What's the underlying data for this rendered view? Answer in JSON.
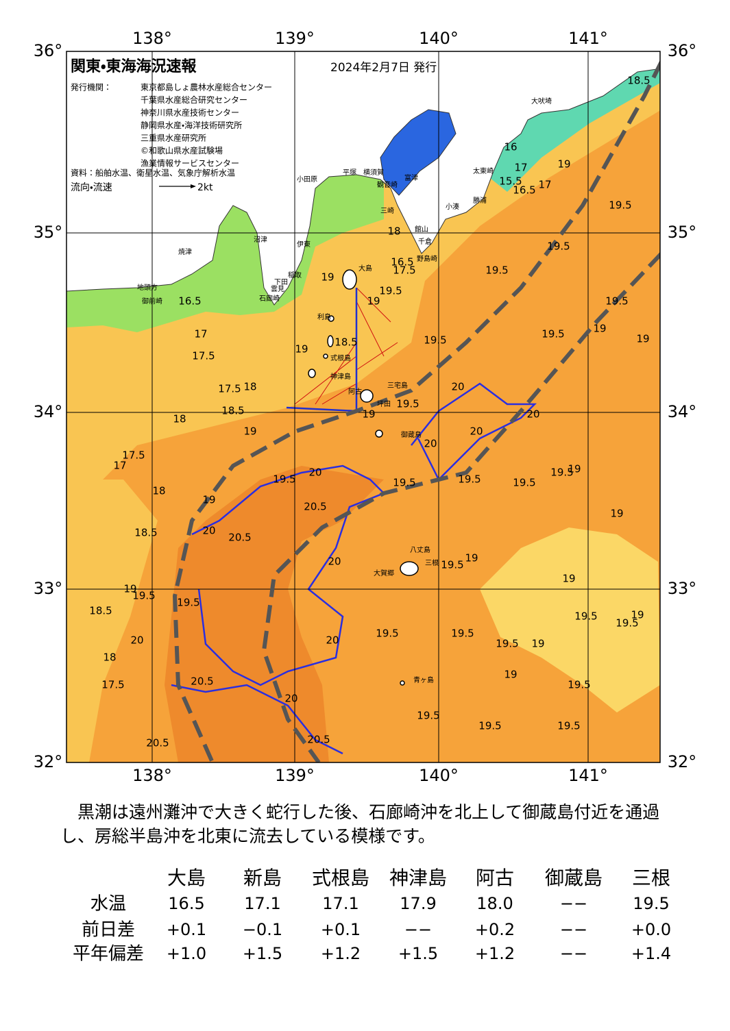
{
  "header": {
    "title": "関東・東海海況速報",
    "date": "2024年2月7日 発行",
    "issuer_label": "発行機関：",
    "issuers": [
      "東京都島しょ農林水産総合センター",
      "千葉県水産総合研究センター",
      "神奈川県水産技術センター",
      "静岡県水産・海洋技術研究所",
      "三重県水産研究所",
      "©和歌山県水産試験場",
      "漁業情報サービスセンター"
    ],
    "source": "資料：船舶水温、衛星水温、気象庁解析水温",
    "legend_label": "流向・流速",
    "legend_scale": "2kt"
  },
  "map": {
    "lon_labels": [
      "138°",
      "139°",
      "140°",
      "141°"
    ],
    "lat_labels": [
      "36°",
      "35°",
      "34°",
      "33°",
      "32°"
    ],
    "places": [
      "大吠埼",
      "太東崎",
      "勝浦",
      "小湊",
      "館山",
      "千倉",
      "野島崎",
      "富津",
      "観音崎",
      "横須賀",
      "平塚",
      "小田原",
      "三崎",
      "大島",
      "利島",
      "式根島",
      "神津島",
      "三宅島",
      "阿古",
      "坪田",
      "御蔵島",
      "八丈島",
      "三根",
      "大賀郷",
      "青ヶ島",
      "沼津",
      "伊東",
      "稲取",
      "下田",
      "雲見",
      "石廊崎",
      "焼津",
      "地頭方",
      "御前崎"
    ],
    "isotherm_labels": [
      "16.5",
      "17",
      "17.5",
      "17.5",
      "18",
      "18.5",
      "18",
      "17.5",
      "17",
      "18",
      "19",
      "19",
      "18.5",
      "19.5",
      "20",
      "20.5",
      "20.5",
      "20",
      "19.5",
      "19",
      "19.5",
      "18.5",
      "20",
      "18",
      "17.5",
      "20.5",
      "20.5",
      "20",
      "20.5",
      "20",
      "20",
      "19.5",
      "19.5",
      "19.5",
      "19.5",
      "19.5",
      "19.5",
      "19",
      "19",
      "19.5",
      "19.5",
      "19.5",
      "19",
      "19.5",
      "19",
      "19",
      "19",
      "19.5",
      "19",
      "19.5",
      "19.5",
      "19.5",
      "20",
      "20",
      "20",
      "20",
      "19.5",
      "19.5",
      "19.5",
      "19.5",
      "19.5",
      "19",
      "19",
      "19.5",
      "19.5",
      "19.5",
      "19",
      "18.5",
      "17",
      "16.5",
      "15.5",
      "16",
      "17",
      "18",
      "16.5",
      "17.5",
      "19",
      "19",
      "18.5",
      "19",
      "19"
    ]
  },
  "summary": "黒潮は遠州灘沖で大きく蛇行した後、石廊崎沖を北上して御蔵島付近を通過し、房総半島沖を北東に流去している模様です。",
  "table": {
    "columns": [
      "大島",
      "新島",
      "式根島",
      "神津島",
      "阿古",
      "御蔵島",
      "三根"
    ],
    "rows": [
      {
        "label": "水温",
        "cells": [
          "16.5",
          "17.1",
          "17.1",
          "17.9",
          "18.0",
          "−−",
          "19.5"
        ]
      },
      {
        "label": "前日差",
        "cells": [
          "+0.1",
          "−0.1",
          "+0.1",
          "−−",
          "+0.2",
          "−−",
          "+0.0"
        ]
      },
      {
        "label": "平年偏差",
        "cells": [
          "+1.0",
          "+1.5",
          "+1.2",
          "+1.5",
          "+1.2",
          "−−",
          "+1.4"
        ]
      }
    ]
  }
}
